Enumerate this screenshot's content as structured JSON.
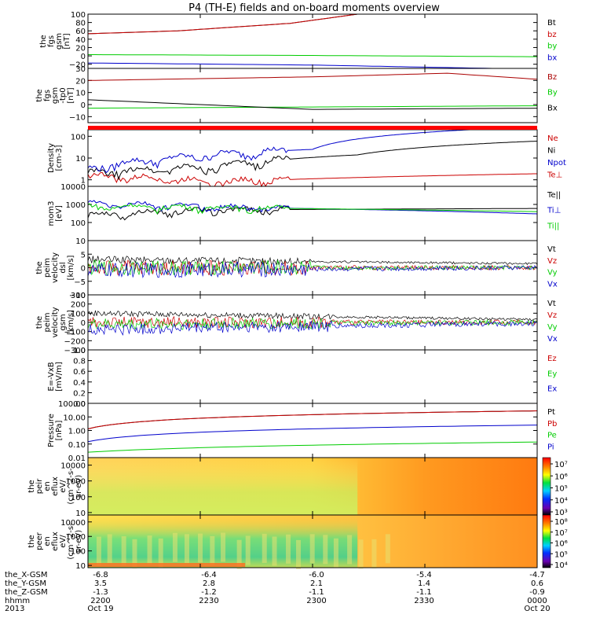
{
  "title": "P4 (TH-E) fields and on-board moments overview",
  "chart_data": [
    {
      "type": "line",
      "panel": 1,
      "ylabel": [
        "the",
        "fgs",
        "gsm",
        "[nT]"
      ],
      "ylim": [
        -30,
        100
      ],
      "yticks": [
        "100",
        "80",
        "60",
        "40",
        "20",
        "0",
        "−20"
      ],
      "series": [
        {
          "name": "Bt",
          "color": "#000000",
          "x": [
            0,
            0.2,
            0.45,
            0.6
          ],
          "y": [
            53,
            60,
            78,
            100
          ]
        },
        {
          "name": "bz",
          "color": "#cc0000",
          "x": [
            0,
            0.2,
            0.45,
            0.6
          ],
          "y": [
            53,
            60,
            78,
            100
          ]
        },
        {
          "name": "by",
          "color": "#00cc00",
          "x": [
            0,
            0.5,
            1
          ],
          "y": [
            3,
            1,
            -2
          ]
        },
        {
          "name": "bx",
          "color": "#0000cc",
          "x": [
            0,
            0.5,
            1
          ],
          "y": [
            -17,
            -22,
            -32
          ]
        }
      ]
    },
    {
      "type": "line",
      "panel": 2,
      "ylabel": [
        "the",
        "fgs",
        "gsm",
        "-tp0",
        "[nT]"
      ],
      "ylim": [
        -15,
        30
      ],
      "yticks": [
        "30",
        "20",
        "10",
        "0",
        "−10"
      ],
      "series": [
        {
          "name": "Bz",
          "color": "#aa0000",
          "x": [
            0,
            0.5,
            0.8,
            1
          ],
          "y": [
            20,
            23,
            26,
            21
          ]
        },
        {
          "name": "By",
          "color": "#00cc00",
          "x": [
            0,
            0.5,
            1
          ],
          "y": [
            -3,
            -2,
            -1
          ]
        },
        {
          "name": "Bx",
          "color": "#000000",
          "x": [
            0,
            0.5,
            1
          ],
          "y": [
            4,
            -4,
            -3
          ]
        }
      ]
    },
    {
      "type": "line",
      "panel": 3,
      "ylabel": [
        "Density",
        "[cm-3]"
      ],
      "ylim": [
        0.5,
        200
      ],
      "yscale": "log",
      "yticks": [
        "100",
        "10",
        "1"
      ],
      "series": [
        {
          "name": "Ne",
          "color": "#cc0000",
          "x": [
            0,
            0.3,
            1
          ],
          "y": [
            1.5,
            0.8,
            1.9
          ]
        },
        {
          "name": "Ni",
          "color": "#000000",
          "x": [
            0,
            0.3,
            0.6,
            1
          ],
          "y": [
            2,
            4,
            14,
            60
          ]
        },
        {
          "name": "Npot",
          "color": "#0000cc",
          "x": [
            0,
            0.2,
            0.5,
            0.85
          ],
          "y": [
            3,
            10,
            25,
            200
          ]
        },
        {
          "name": "Te⊥",
          "color": "#cc0000",
          "x": [],
          "y": []
        }
      ]
    },
    {
      "type": "line",
      "panel": 4,
      "ylabel": [
        "mom3",
        "[eV]"
      ],
      "ylim": [
        10,
        10000
      ],
      "yscale": "log",
      "yticks": [
        "10000",
        "1000",
        "100"
      ],
      "series": [
        {
          "name": "Te||",
          "color": "#000000",
          "x": [
            0,
            0.3,
            1
          ],
          "y": [
            250,
            500,
            600
          ]
        },
        {
          "name": "Ti⊥",
          "color": "#0000cc",
          "x": [
            0,
            0.3,
            1
          ],
          "y": [
            1100,
            700,
            300
          ]
        },
        {
          "name": "Ti||",
          "color": "#00cc00",
          "x": [
            0,
            0.3,
            1
          ],
          "y": [
            800,
            650,
            400
          ]
        }
      ]
    },
    {
      "type": "line",
      "panel": 5,
      "ylabel": [
        "the",
        "peim",
        "velocity",
        "dsl",
        "[km/s]"
      ],
      "ylim": [
        -10,
        10
      ],
      "yticks": [
        "10",
        "5",
        "0",
        "−5",
        "−10"
      ],
      "series": [
        {
          "name": "Vt",
          "color": "#000000",
          "x": [
            0,
            1
          ],
          "y": [
            3,
            1.5
          ]
        },
        {
          "name": "Vz",
          "color": "#cc0000",
          "x": [
            0,
            1
          ],
          "y": [
            0,
            0
          ]
        },
        {
          "name": "Vy",
          "color": "#00cc00",
          "x": [
            0,
            1
          ],
          "y": [
            0,
            0
          ]
        },
        {
          "name": "Vx",
          "color": "#0000cc",
          "x": [
            0,
            1
          ],
          "y": [
            -1,
            0
          ]
        }
      ]
    },
    {
      "type": "line",
      "panel": 6,
      "ylabel": [
        "the",
        "peim",
        "velocity",
        "gsm",
        "[km/s]"
      ],
      "ylim": [
        -300,
        300
      ],
      "yticks": [
        "300",
        "200",
        "100",
        "0",
        "−100",
        "−200",
        "−300"
      ],
      "series": [
        {
          "name": "Vt",
          "color": "#000000",
          "x": [
            0,
            1
          ],
          "y": [
            100,
            30
          ]
        },
        {
          "name": "Vz",
          "color": "#cc0000",
          "x": [
            0,
            1
          ],
          "y": [
            0,
            0
          ]
        },
        {
          "name": "Vy",
          "color": "#00cc00",
          "x": [
            0,
            1
          ],
          "y": [
            -20,
            0
          ]
        },
        {
          "name": "Vx",
          "color": "#0000cc",
          "x": [
            0,
            1
          ],
          "y": [
            -80,
            -10
          ]
        }
      ]
    },
    {
      "type": "line",
      "panel": 7,
      "ylabel": [
        "E=-VxB",
        "[mV/m]"
      ],
      "ylim": [
        0,
        1
      ],
      "yticks": [
        "1.0",
        "0.8",
        "0.6",
        "0.4",
        "0.2",
        "0.0"
      ],
      "series": [
        {
          "name": "Ez",
          "color": "#cc0000",
          "x": [],
          "y": []
        },
        {
          "name": "Ey",
          "color": "#00cc00",
          "x": [],
          "y": []
        },
        {
          "name": "Ex",
          "color": "#0000cc",
          "x": [],
          "y": []
        }
      ]
    },
    {
      "type": "line",
      "panel": 8,
      "ylabel": [
        "Pressure",
        "[nPa]"
      ],
      "ylim": [
        0.01,
        100
      ],
      "yscale": "log",
      "yticks": [
        "100.00",
        "10.00",
        "1.00",
        "0.10",
        "0.01"
      ],
      "series": [
        {
          "name": "Pt",
          "color": "#000000",
          "x": [
            0,
            1
          ],
          "y": [
            1.3,
            28
          ]
        },
        {
          "name": "Pb",
          "color": "#cc0000",
          "x": [
            0,
            1
          ],
          "y": [
            1.3,
            28
          ]
        },
        {
          "name": "Pe",
          "color": "#00cc00",
          "x": [
            0,
            1
          ],
          "y": [
            0.025,
            0.14
          ]
        },
        {
          "name": "Pi",
          "color": "#0000cc",
          "x": [
            0,
            1
          ],
          "y": [
            0.15,
            2.5
          ]
        }
      ]
    },
    {
      "type": "heatmap",
      "panel": 9,
      "ylabel": [
        "the",
        "peir",
        "en",
        "eflux",
        "eV/",
        "(cm^2-s-",
        "sr-eV)"
      ],
      "yscale": "log",
      "yticks": [
        "10000",
        "1000",
        "100",
        "10"
      ],
      "colorbar_ticks": [
        "10⁷",
        "10⁶",
        "10⁵",
        "10⁴",
        "10³"
      ]
    },
    {
      "type": "heatmap",
      "panel": 10,
      "ylabel": [
        "the",
        "peer",
        "en",
        "eflux",
        "eV/",
        "(cm^2-s-",
        "sr-eV)"
      ],
      "yscale": "log",
      "yticks": [
        "10000",
        "1000",
        "100",
        "10"
      ],
      "colorbar_ticks": [
        "10⁸",
        "10⁷",
        "10⁶",
        "10⁵",
        "10⁴"
      ]
    }
  ],
  "xaxis": {
    "rows": [
      {
        "label": "the_X-GSM",
        "values": [
          "-6.8",
          "-6.4",
          "-6.0",
          "-5.4",
          "-4.7"
        ]
      },
      {
        "label": "the_Y-GSM",
        "values": [
          "3.5",
          "2.8",
          "2.1",
          "1.4",
          "0.6"
        ]
      },
      {
        "label": "the_Z-GSM",
        "values": [
          "-1.3",
          "-1.2",
          "-1.1",
          "-1.1",
          "-0.9"
        ]
      },
      {
        "label": "hhmm",
        "values": [
          "2200",
          "2230",
          "2300",
          "2330",
          "0000"
        ]
      },
      {
        "label": "2013",
        "values": [
          "Oct 19",
          "",
          "",
          "",
          "Oct 20"
        ]
      }
    ]
  }
}
